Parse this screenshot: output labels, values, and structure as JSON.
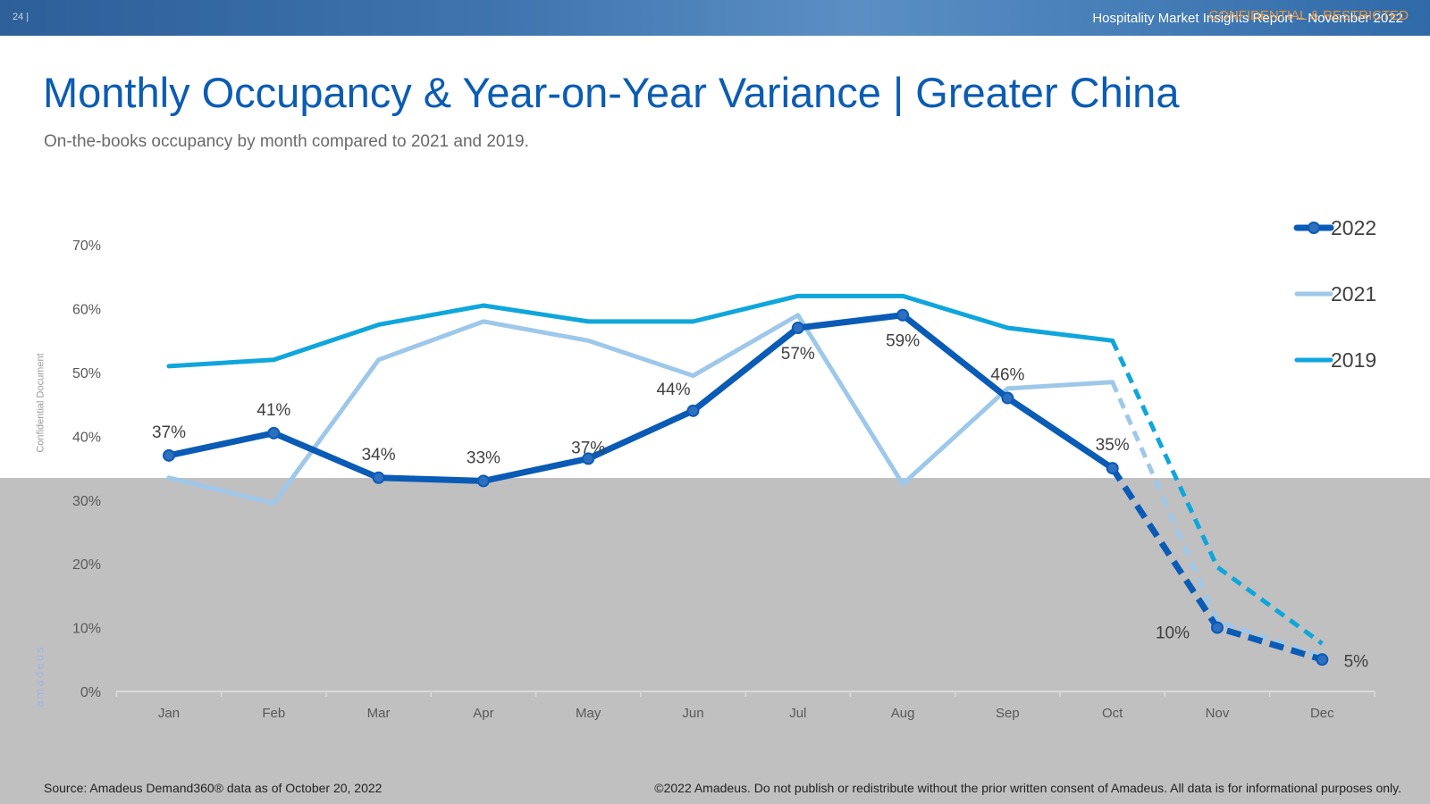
{
  "header": {
    "page_number": "24 |",
    "report_title": "Hospitality Market Insights Report – November 2022",
    "confidential": "CONFIDENTIAL & RESTRICTED"
  },
  "title": "Monthly Occupancy & Year-on-Year Variance | Greater China",
  "subtitle": "On-the-books occupancy by month compared to 2021 and 2019.",
  "side_label": "Confidential Document",
  "brand": "amadeus",
  "footer": {
    "source": "Source: Amadeus Demand360® data as of October 20, 2022",
    "copyright": "©2022 Amadeus. Do not publish or redistribute without the prior written consent of Amadeus. All data is for informational purposes only."
  },
  "colors": {
    "s2022": "#0a5bb5",
    "s2021": "#9ec8ea",
    "s2019": "#0fa6dc",
    "title": "#0b5cb3"
  },
  "chart_data": {
    "type": "line",
    "title": "Monthly Occupancy & Year-on-Year Variance | Greater China",
    "categories": [
      "Jan",
      "Feb",
      "Mar",
      "Apr",
      "May",
      "Jun",
      "Jul",
      "Aug",
      "Sep",
      "Oct",
      "Nov",
      "Dec"
    ],
    "y_ticks": [
      "0%",
      "10%",
      "20%",
      "30%",
      "40%",
      "50%",
      "60%",
      "70%"
    ],
    "ylim": [
      0,
      70
    ],
    "solid_until_index": 9,
    "legend_position": "right",
    "series": [
      {
        "name": "2022",
        "values": [
          37,
          40.5,
          33.5,
          33,
          36.5,
          44,
          57,
          59,
          46,
          35,
          10,
          5
        ],
        "labels": [
          "37%",
          "41%",
          "34%",
          "33%",
          "37%",
          "44%",
          "57%",
          "59%",
          "46%",
          "35%",
          "10%",
          "5%"
        ],
        "markers": true
      },
      {
        "name": "2021",
        "values": [
          33.5,
          29.5,
          52,
          58,
          55,
          49.5,
          59,
          32.5,
          47.5,
          48.5,
          11,
          5.5
        ],
        "markers": false
      },
      {
        "name": "2019",
        "values": [
          51,
          52,
          57.5,
          60.5,
          58,
          58,
          62,
          62,
          57,
          55,
          19.5,
          7.5
        ],
        "markers": false
      }
    ]
  }
}
